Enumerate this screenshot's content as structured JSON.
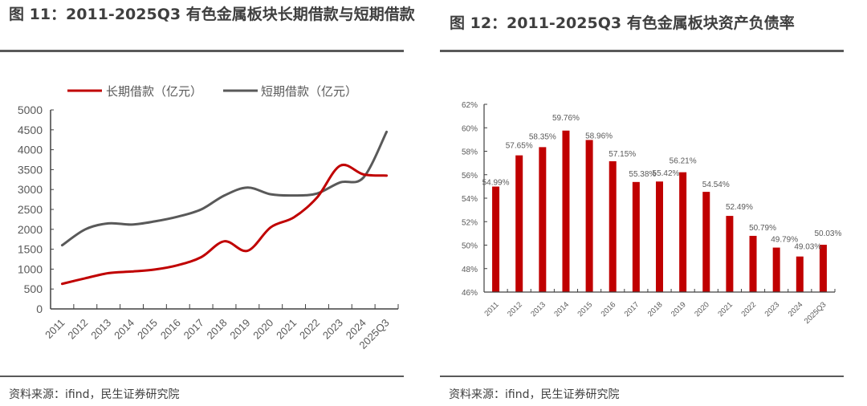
{
  "left": {
    "title": "图 11：2011-2025Q3 有色金属板块长期借款与短期借款",
    "source": "资料来源：ifind，民生证券研究院"
  },
  "right": {
    "title": "图 12：2011-2025Q3 有色金属板块资产负债率",
    "source": "资料来源：ifind，民生证券研究院"
  },
  "chart_data": [
    {
      "type": "line",
      "title": "2011-2025Q3 有色金属板块长期借款与短期借款",
      "xlabel": "",
      "ylabel": "",
      "categories": [
        "2011",
        "2012",
        "2013",
        "2014",
        "2015",
        "2016",
        "2017",
        "2018",
        "2019",
        "2020",
        "2021",
        "2022",
        "2023",
        "2024",
        "2025Q3"
      ],
      "ylim": [
        0,
        5000
      ],
      "yticks": [
        "0",
        "500",
        "1000",
        "1500",
        "2000",
        "2500",
        "3000",
        "3500",
        "4000",
        "4500",
        "5000"
      ],
      "legend_position": "top",
      "grid": false,
      "smooth": true,
      "series": [
        {
          "name": "长期借款（亿元）",
          "color": "#C00000",
          "values": [
            630,
            770,
            900,
            940,
            990,
            1100,
            1300,
            1700,
            1460,
            2050,
            2300,
            2800,
            3600,
            3380,
            3350
          ]
        },
        {
          "name": "短期借款（亿元）",
          "color": "#595959",
          "values": [
            1600,
            2000,
            2150,
            2120,
            2200,
            2320,
            2500,
            2850,
            3050,
            2880,
            2850,
            2900,
            3180,
            3300,
            4450
          ]
        }
      ]
    },
    {
      "type": "bar",
      "title": "2011-2025Q3 有色金属板块资产负债率",
      "xlabel": "",
      "ylabel": "",
      "categories": [
        "2011",
        "2012",
        "2013",
        "2014",
        "2015",
        "2016",
        "2017",
        "2018",
        "2019",
        "2020",
        "2021",
        "2022",
        "2023",
        "2024",
        "2025Q3"
      ],
      "ylim": [
        46,
        62
      ],
      "yticks": [
        "46%",
        "48%",
        "50%",
        "52%",
        "54%",
        "56%",
        "58%",
        "60%",
        "62%"
      ],
      "grid": false,
      "color": "#C00000",
      "values": [
        54.99,
        57.65,
        58.35,
        59.76,
        58.96,
        57.15,
        55.38,
        55.42,
        56.21,
        54.54,
        52.49,
        50.79,
        49.79,
        49.03,
        50.03
      ],
      "data_labels": [
        "54.99%",
        "57.65%",
        "58.35%",
        "59.76%",
        "58.96%",
        "57.15%",
        "55.38%",
        "55.42%",
        "56.21%",
        "54.54%",
        "52.49%",
        "50.79%",
        "49.79%",
        "49.03%",
        "50.03%"
      ]
    }
  ]
}
